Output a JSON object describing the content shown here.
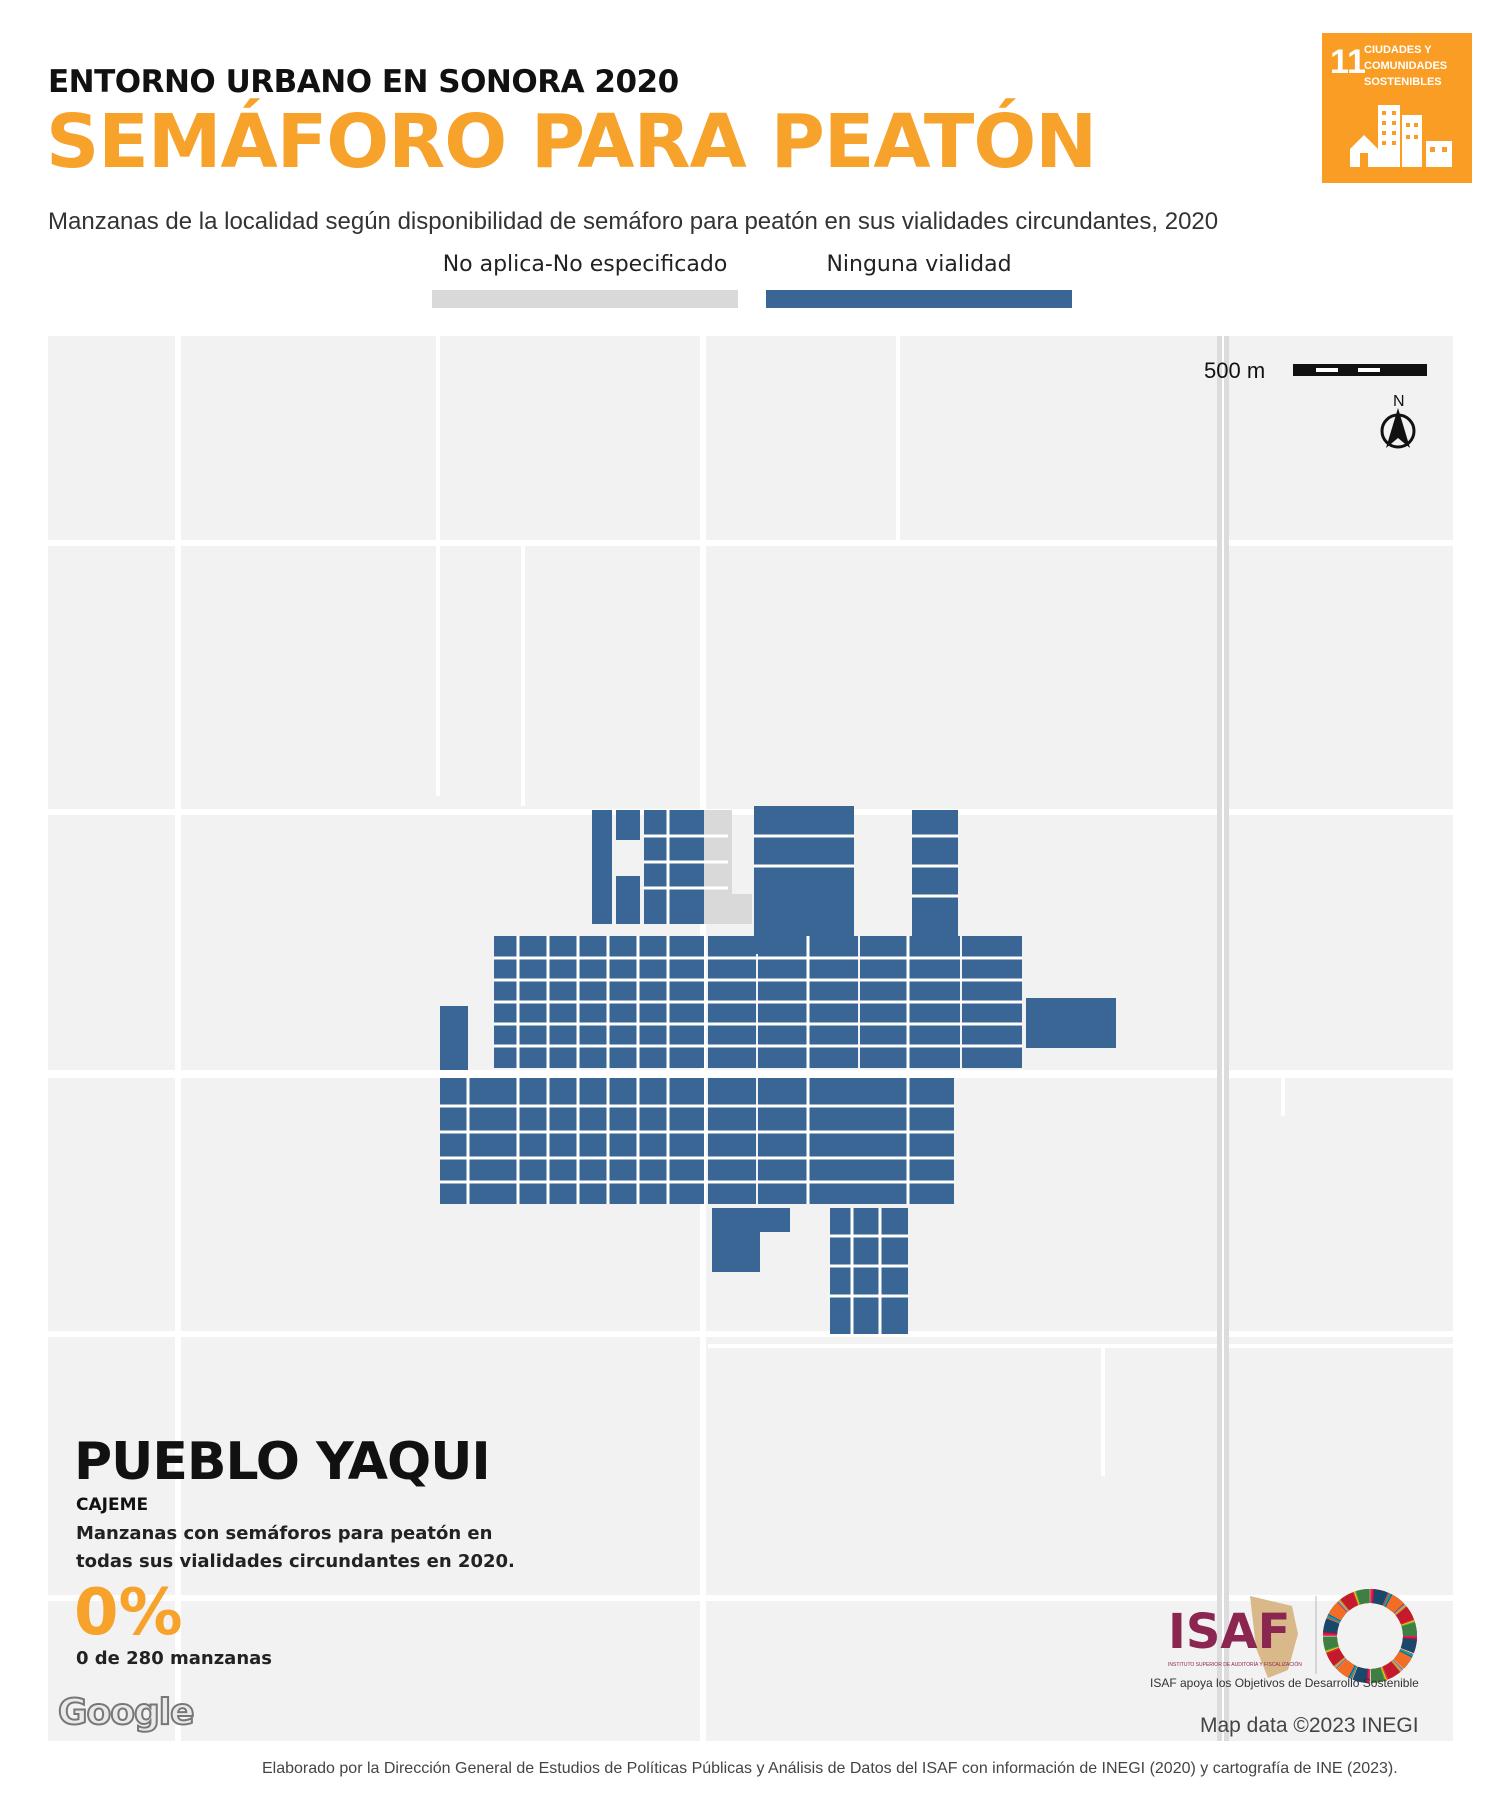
{
  "header": {
    "kicker": "ENTORNO URBANO EN SONORA 2020",
    "title": "SEMÁFORO PARA PEATÓN",
    "subtitle": "Manzanas de la localidad según disponibilidad de semáforo para peatón en sus vialidades circundantes, 2020"
  },
  "legend": [
    {
      "label": "No aplica-No especificado",
      "color": "#d9d9d9"
    },
    {
      "label": "Ninguna vialidad",
      "color": "#3a6696"
    }
  ],
  "sdg_badge": {
    "number": "11",
    "text_line1": "CIUDADES Y",
    "text_line2": "COMUNIDADES",
    "text_line3": "SOSTENIBLES",
    "color": "#f99d25"
  },
  "map": {
    "scale_label": "500 m",
    "north_label": "N",
    "background": "#f2f2f2",
    "block_color": "#3a6696",
    "na_color": "#d9d9d9",
    "attribution": "Map data ©2023 INEGI",
    "provider": "Google"
  },
  "locality": {
    "name": "PUEBLO YAQUI",
    "municipio": "CAJEME",
    "description": "Manzanas con semáforos para peatón en todas sus vialidades circundantes en 2020.",
    "percent": "0%",
    "count_text": "0 de 280 manzanas"
  },
  "logos": {
    "isaf": "ISAF",
    "isaf_sub": "INSTITUTO SUPERIOR DE AUDITORÍA Y FISCALIZACIÓN",
    "isaf_caption": "ISAF apoya los Objetivos de Desarrollo Sostenible"
  },
  "footer": {
    "credit": "Elaborado por la Dirección General de Estudios de Políticas Públicas y Análisis de Datos del ISAF con información de INEGI (2020) y cartografía de INE (2023)."
  }
}
